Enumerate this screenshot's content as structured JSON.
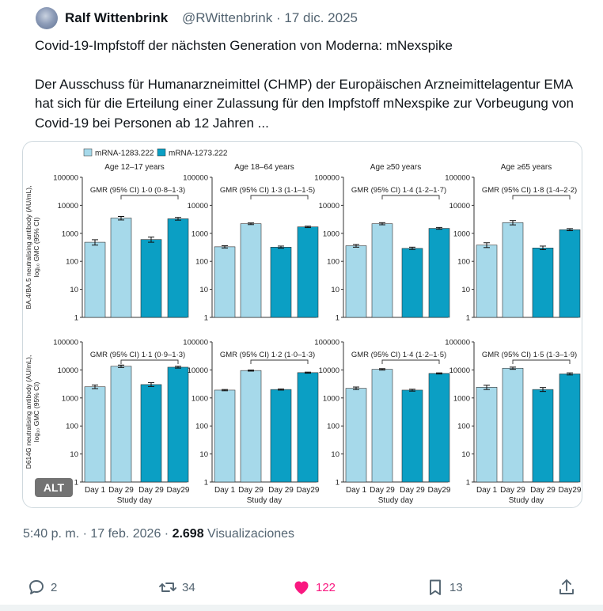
{
  "tweet": {
    "author_name": "Ralf Wittenbrink",
    "handle_date": "@RWittenbrink · 17 dic. 2025",
    "title_line": "Covid-19-Impfstoff der nächsten Generation von Moderna: mNexspike",
    "body": "Der Ausschuss für Humanarzneimittel (CHMP) der Europäischen Arzneimittelagentur EMA hat sich für die Erteilung einer Zulassung für den Impfstoff mNexspike zur Vorbeugung von Covid-19 bei Personen ab 12 Jahren ...",
    "alt_label": "ALT",
    "timestamp": "5:40 p. m. · 17 feb. 2026 · ",
    "views_count": "2.698",
    "views_label": " Visualizaciones"
  },
  "actions": {
    "replies": "2",
    "reposts": "34",
    "likes": "122",
    "bookmarks": "13"
  },
  "colors": {
    "series_light": "#a6d9ea",
    "series_dark": "#0b9fc4",
    "like": "#f91880"
  },
  "chart_data": {
    "type": "bar",
    "legend": [
      "mRNA-1283.222",
      "mRNA-1273.222"
    ],
    "y_scale": "log10",
    "ylim": [
      1,
      100000
    ],
    "y_ticks": [
      "100000",
      "10000",
      "1000",
      "100",
      "10",
      "1"
    ],
    "categories": [
      "Day 1",
      "Day 29",
      "Day 29",
      "Day29"
    ],
    "xlabel": "Study day",
    "rows": [
      {
        "ylabel_line1": "BA.4/BA.5 neutralising antibody (AU/mL),",
        "ylabel_line2": "log₁₀ GMC (95% CI)",
        "panels": [
          {
            "title": "Age 12–17 years",
            "gmr": "GMR (95% CI) 1·0 (0·8–1·3)",
            "values": [
              480,
              3500,
              600,
              3300
            ],
            "ci_low": [
              380,
              3000,
              480,
              2950
            ],
            "ci_high": [
              590,
              4000,
              740,
              3700
            ]
          },
          {
            "title": "Age 18–64 years",
            "gmr": "GMR (95% CI) 1·3 (1·1–1·5)",
            "values": [
              330,
              2200,
              320,
              1700
            ],
            "ci_low": [
              300,
              2050,
              295,
              1600
            ],
            "ci_high": [
              360,
              2350,
              350,
              1800
            ]
          },
          {
            "title": "Age ≥50 years",
            "gmr": "GMR (95% CI) 1·4 (1·2–1·7)",
            "values": [
              360,
              2200,
              290,
              1500
            ],
            "ci_low": [
              320,
              2020,
              265,
              1400
            ],
            "ci_high": [
              400,
              2400,
              320,
              1620
            ]
          },
          {
            "title": "Age ≥65 years",
            "gmr": "GMR (95% CI) 1·8 (1·4–2·2)",
            "values": [
              380,
              2400,
              300,
              1350
            ],
            "ci_low": [
              310,
              2000,
              260,
              1240
            ],
            "ci_high": [
              460,
              2850,
              350,
              1470
            ]
          }
        ]
      },
      {
        "ylabel_line1": "D614G neutralising antibody (AU/mL),",
        "ylabel_line2": "log₁₀ GMC (95% CI)",
        "panels": [
          {
            "title": "",
            "gmr": "GMR (95% CI) 1·1 (0·9–1·3)",
            "values": [
              2500,
              13500,
              3000,
              12500
            ],
            "ci_low": [
              2150,
              12200,
              2550,
              11600
            ],
            "ci_high": [
              2900,
              14900,
              3500,
              13500
            ]
          },
          {
            "title": "",
            "gmr": "GMR (95% CI) 1·2 (1·0–1·3)",
            "values": [
              1900,
              9500,
              2000,
              8000
            ],
            "ci_low": [
              1800,
              9050,
              1900,
              7650
            ],
            "ci_high": [
              2000,
              9950,
              2100,
              8350
            ]
          },
          {
            "title": "",
            "gmr": "GMR (95% CI) 1·4 (1·2–1·5)",
            "values": [
              2200,
              10500,
              1900,
              7500
            ],
            "ci_low": [
              2000,
              9900,
              1750,
              7150
            ],
            "ci_high": [
              2450,
              11100,
              2050,
              7850
            ]
          },
          {
            "title": "",
            "gmr": "GMR (95% CI) 1·5 (1·3–1·9)",
            "values": [
              2400,
              11500,
              2000,
              7200
            ],
            "ci_low": [
              2000,
              10500,
              1700,
              6600
            ],
            "ci_high": [
              2850,
              12600,
              2350,
              7850
            ]
          }
        ]
      }
    ]
  }
}
